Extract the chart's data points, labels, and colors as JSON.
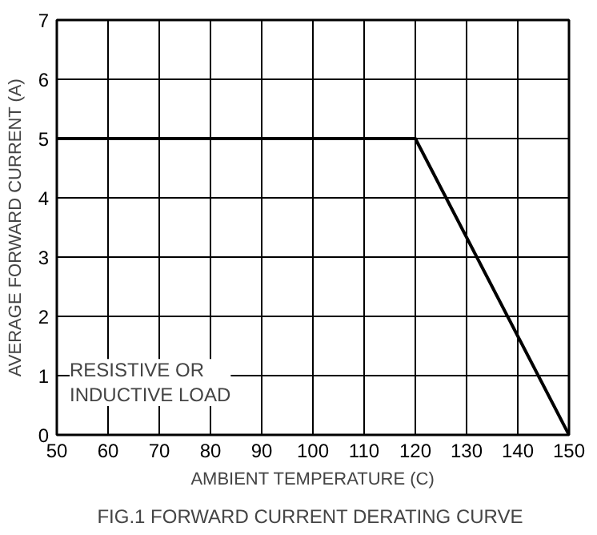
{
  "chart_data": {
    "type": "line",
    "title": "FIG.1 FORWARD CURRENT  DERATING CURVE",
    "xlabel": "AMBIENT TEMPERATURE (C)",
    "ylabel": "AVERAGE FORWARD CURRENT (A)",
    "x": [
      50,
      120,
      150
    ],
    "series": [
      {
        "color": "#000000",
        "values": [
          5,
          5,
          0
        ]
      }
    ],
    "xlim": [
      50,
      150
    ],
    "xticks": [
      50,
      60,
      70,
      80,
      90,
      100,
      110,
      120,
      130,
      140,
      150
    ],
    "ylim": [
      0,
      7
    ],
    "yticks": [
      0,
      1,
      2,
      3,
      4,
      5,
      6,
      7
    ],
    "grid": true,
    "marker": "none",
    "line_style": "solid",
    "annotations": [
      "RESISTIVE OR\nINDUCTIVE LOAD"
    ]
  }
}
